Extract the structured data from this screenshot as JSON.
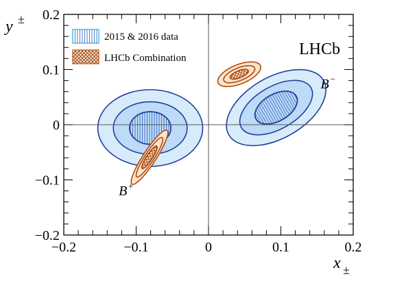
{
  "chart_data": {
    "type": "contour",
    "xlabel": {
      "main": "x",
      "sub": "±"
    },
    "ylabel": {
      "main": "y",
      "sub": "±"
    },
    "xlim": [
      -0.2,
      0.2
    ],
    "ylim": [
      -0.2,
      0.2
    ],
    "x_ticks": [
      {
        "value": -0.2,
        "label": "−0.2"
      },
      {
        "value": -0.1,
        "label": "−0.1"
      },
      {
        "value": 0,
        "label": "0"
      },
      {
        "value": 0.1,
        "label": "0.1"
      },
      {
        "value": 0.2,
        "label": "0.2"
      }
    ],
    "y_ticks": [
      {
        "value": -0.2,
        "label": "−0.2"
      },
      {
        "value": -0.1,
        "label": "−0.1"
      },
      {
        "value": 0,
        "label": "0"
      },
      {
        "value": 0.1,
        "label": "0.1"
      },
      {
        "value": 0.2,
        "label": "0.2"
      }
    ],
    "experiment_label": "LHCb",
    "legend": [
      {
        "label": "2015 & 2016 data",
        "pattern": "vertical-lines",
        "stroke": "#2ea8d6"
      },
      {
        "label": "LHCb Combination",
        "pattern": "crosshatch",
        "stroke": "#c8641e"
      }
    ],
    "annotations": [
      {
        "main": "B",
        "sup": "+",
        "x": -0.124,
        "y": -0.128
      },
      {
        "main": "B",
        "sup": "−",
        "x": 0.155,
        "y": 0.066
      }
    ],
    "contours": [
      {
        "group": "B+",
        "series": "2015 & 2016 data",
        "center": [
          -0.0805,
          -0.006
        ],
        "angle_deg": 0,
        "levels": [
          {
            "sigma": 3,
            "rx": 0.0725,
            "ry": 0.0695,
            "fill": "#d8ebfa"
          },
          {
            "sigma": 2,
            "rx": 0.051,
            "ry": 0.0475,
            "fill": "#bddaf6"
          },
          {
            "sigma": 1,
            "rx": 0.0285,
            "ry": 0.0295,
            "fill": "#bddaf6",
            "hatch": true
          }
        ]
      },
      {
        "group": "B-",
        "series": "2015 & 2016 data",
        "center": [
          0.0935,
          0.031
        ],
        "angle_deg": -30,
        "levels": [
          {
            "sigma": 3,
            "rx": 0.0755,
            "ry": 0.0555,
            "fill": "#d8ebfa"
          },
          {
            "sigma": 2,
            "rx": 0.0555,
            "ry": 0.0385,
            "fill": "#bddaf6"
          },
          {
            "sigma": 1,
            "rx": 0.032,
            "ry": 0.0245,
            "fill": "#bddaf6",
            "hatch": true
          }
        ]
      },
      {
        "group": "B+",
        "series": "LHCb Combination",
        "center": [
          -0.0815,
          -0.059
        ],
        "angle_deg": -57,
        "levels": [
          {
            "sigma": 3,
            "rx": 0.0445,
            "ry": 0.0118,
            "fill": "#fbe4cc"
          },
          {
            "sigma": 2,
            "rx": 0.0325,
            "ry": 0.0084,
            "fill": "#fbe4cc"
          },
          {
            "sigma": 1,
            "rx": 0.0185,
            "ry": 0.0052,
            "fill": "#fbe4cc",
            "hatch": true
          }
        ]
      },
      {
        "group": "B-",
        "series": "LHCb Combination",
        "center": [
          0.0425,
          0.0915
        ],
        "angle_deg": -22,
        "levels": [
          {
            "sigma": 3,
            "rx": 0.0315,
            "ry": 0.0175,
            "fill": "#fbe4cc"
          },
          {
            "sigma": 2,
            "rx": 0.023,
            "ry": 0.0115,
            "fill": "#fbe4cc"
          },
          {
            "sigma": 1,
            "rx": 0.0135,
            "ry": 0.0064,
            "fill": "#fbe4cc",
            "hatch": true
          }
        ]
      }
    ],
    "colors": {
      "data_stroke": "#1f3f9c",
      "data_hatch": "#3b6fc7",
      "combination_stroke": "#b04a0c",
      "combination_hatch": "#8a3408",
      "zero_line": "#000000"
    }
  }
}
